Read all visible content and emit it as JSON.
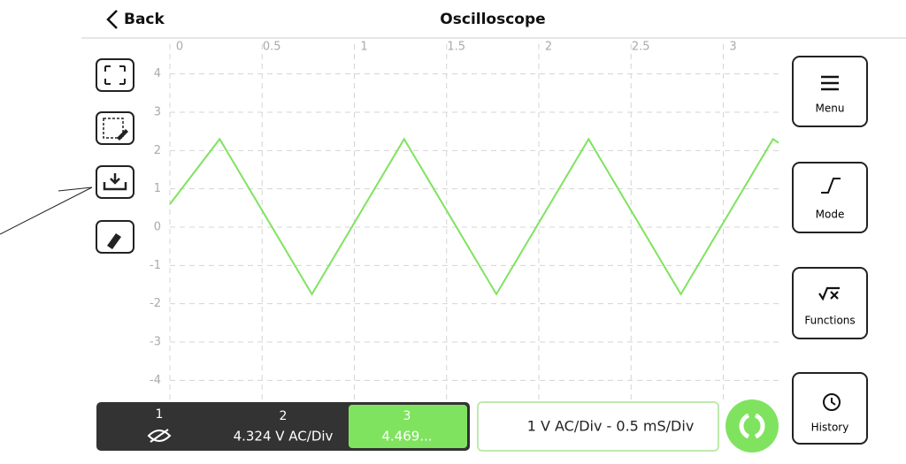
{
  "header": {
    "back": "Back",
    "title": "Oscilloscope"
  },
  "chart_data": {
    "type": "line",
    "xlim": [
      0,
      3.3
    ],
    "ylim": [
      -4.5,
      4.5
    ],
    "xticks": [
      0,
      0.5,
      1,
      1.5,
      2,
      2.5,
      3
    ],
    "yticks": [
      -4,
      -3,
      -2,
      -1,
      0,
      1,
      2,
      3,
      4
    ],
    "grid": true,
    "series": [
      {
        "color": "#7fe35f",
        "x": [
          0,
          0.27,
          0.77,
          1.27,
          1.77,
          2.27,
          2.77,
          3.27,
          3.3
        ],
        "values": [
          0.6,
          2.3,
          -1.75,
          2.3,
          -1.75,
          2.3,
          -1.75,
          2.3,
          2.2
        ]
      }
    ]
  },
  "side_buttons": [
    "Menu",
    "Mode",
    "Functions",
    "History"
  ],
  "channels": [
    {
      "number": "1"
    },
    {
      "number": "2",
      "scale": "4.324 V AC/Div"
    },
    {
      "number": "3",
      "scale": "4.469..."
    }
  ],
  "status": "1 V AC/Div - 0.5 mS/Div"
}
